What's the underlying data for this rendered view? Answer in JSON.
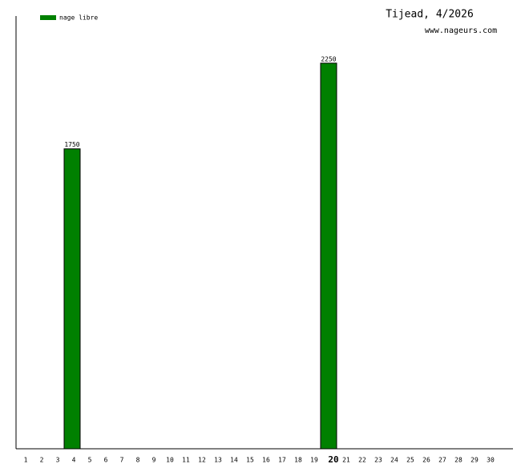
{
  "chart_data": {
    "type": "bar",
    "title": "Tijead, 4/2026",
    "subtitle": "www.nageurs.com",
    "categories": [
      "1",
      "2",
      "3",
      "4",
      "5",
      "6",
      "7",
      "8",
      "9",
      "10",
      "11",
      "12",
      "13",
      "14",
      "15",
      "16",
      "17",
      "18",
      "19",
      "20",
      "21",
      "22",
      "23",
      "24",
      "25",
      "26",
      "27",
      "28",
      "29",
      "30"
    ],
    "series": [
      {
        "name": "nage libre",
        "color": "#008000",
        "values": [
          null,
          null,
          null,
          1750,
          null,
          null,
          null,
          null,
          null,
          null,
          null,
          null,
          null,
          null,
          null,
          null,
          null,
          null,
          null,
          2250,
          null,
          null,
          null,
          null,
          null,
          null,
          null,
          null,
          null,
          null
        ]
      }
    ],
    "highlight": "20",
    "ylim": [
      0,
      2525
    ],
    "legend": "top-left"
  }
}
